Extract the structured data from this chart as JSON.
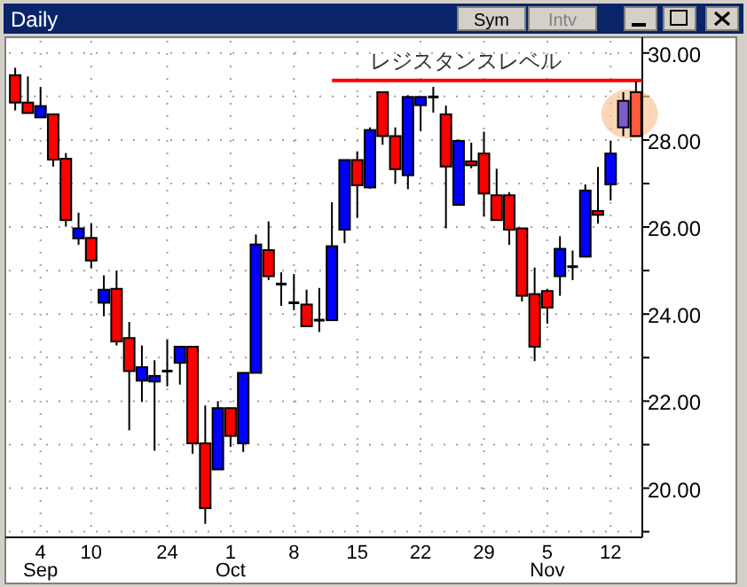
{
  "chart_data": {
    "type": "candlestick",
    "title": "Daily",
    "annotations": [
      "Sym",
      "Intv"
    ],
    "categories": [
      null,
      null,
      "4\nSep",
      null,
      null,
      null,
      "10",
      null,
      null,
      null,
      null,
      null,
      "24",
      null,
      null,
      null,
      null,
      "1\nOct",
      null,
      null,
      null,
      null,
      "8",
      null,
      null,
      null,
      null,
      "15",
      null,
      null,
      null,
      null,
      "22",
      null,
      null,
      null,
      null,
      "29",
      null,
      null,
      null,
      null,
      "5\nNov",
      null,
      null,
      null,
      null,
      "12",
      null,
      null
    ],
    "ohlc": [
      [
        29.49,
        29.66,
        28.68,
        28.86
      ],
      [
        28.86,
        29.46,
        28.62,
        28.62
      ],
      [
        28.52,
        29.22,
        28.52,
        28.78
      ],
      [
        28.59,
        28.59,
        27.39,
        27.55
      ],
      [
        27.57,
        27.7,
        26.01,
        26.16
      ],
      [
        25.74,
        26.33,
        25.59,
        25.97
      ],
      [
        25.75,
        26.09,
        25.05,
        25.23
      ],
      [
        24.26,
        24.89,
        23.95,
        24.56
      ],
      [
        24.58,
        25.0,
        23.28,
        23.37
      ],
      [
        23.45,
        23.82,
        21.33,
        22.69
      ],
      [
        22.47,
        23.28,
        21.98,
        22.78
      ],
      [
        22.45,
        22.94,
        20.86,
        22.58
      ],
      [
        22.69,
        23.41,
        22.34,
        22.69
      ],
      [
        22.88,
        23.25,
        22.38,
        23.25
      ],
      [
        23.25,
        23.25,
        20.79,
        21.03
      ],
      [
        21.03,
        21.9,
        19.18,
        19.54
      ],
      [
        20.43,
        22.0,
        20.43,
        21.84
      ],
      [
        21.84,
        21.84,
        20.95,
        21.2
      ],
      [
        21.03,
        22.65,
        20.83,
        22.65
      ],
      [
        22.65,
        25.83,
        22.65,
        25.6
      ],
      [
        25.47,
        26.13,
        24.78,
        24.87
      ],
      [
        24.69,
        24.96,
        24.19,
        24.69
      ],
      [
        24.26,
        24.92,
        24.09,
        24.26
      ],
      [
        24.22,
        24.56,
        23.72,
        23.72
      ],
      [
        23.82,
        24.6,
        23.59,
        23.86
      ],
      [
        23.86,
        26.57,
        23.86,
        25.56
      ],
      [
        25.94,
        27.54,
        25.63,
        27.54
      ],
      [
        27.54,
        27.74,
        26.21,
        26.96
      ],
      [
        26.91,
        28.29,
        26.88,
        28.23
      ],
      [
        29.1,
        29.1,
        27.89,
        28.09
      ],
      [
        28.09,
        28.29,
        27.0,
        27.33
      ],
      [
        27.19,
        29.03,
        26.87,
        28.99
      ],
      [
        28.8,
        28.99,
        28.2,
        28.99
      ],
      [
        28.99,
        29.22,
        28.63,
        28.99
      ],
      [
        28.59,
        28.79,
        25.97,
        27.39
      ],
      [
        26.51,
        28.01,
        26.51,
        27.98
      ],
      [
        27.51,
        27.94,
        27.35,
        27.42
      ],
      [
        27.69,
        28.19,
        26.24,
        26.77
      ],
      [
        26.73,
        27.34,
        26.16,
        26.16
      ],
      [
        26.73,
        26.8,
        25.59,
        25.94
      ],
      [
        25.97,
        25.97,
        24.29,
        24.42
      ],
      [
        24.46,
        25.07,
        22.92,
        23.25
      ],
      [
        24.53,
        24.58,
        23.78,
        24.15
      ],
      [
        24.87,
        25.79,
        24.42,
        25.5
      ],
      [
        25.09,
        25.46,
        24.78,
        25.09
      ],
      [
        25.32,
        26.98,
        25.32,
        26.84
      ],
      [
        26.37,
        27.38,
        26.08,
        26.28
      ],
      [
        26.98,
        27.98,
        26.61,
        27.69
      ],
      [
        28.29,
        29.1,
        28.09,
        28.9
      ],
      [
        29.1,
        29.35,
        28.09,
        28.09
      ]
    ],
    "colors": [
      "#ff0000",
      "#ff0000",
      "#0000ff",
      "#ff0000",
      "#ff0000",
      "#0000ff",
      "#ff0000",
      "#0000ff",
      "#ff0000",
      "#ff0000",
      "#0000ff",
      "#0000ff",
      "#000000",
      "#0000ff",
      "#ff0000",
      "#ff0000",
      "#0000ff",
      "#ff0000",
      "#0000ff",
      "#0000ff",
      "#ff0000",
      "#000000",
      "#000000",
      "#ff0000",
      "#000000",
      "#0000ff",
      "#0000ff",
      "#ff0000",
      "#0000ff",
      "#ff0000",
      "#ff0000",
      "#0000ff",
      "#0000ff",
      "#000000",
      "#ff0000",
      "#0000ff",
      "#ff0000",
      "#ff0000",
      "#ff0000",
      "#ff0000",
      "#ff0000",
      "#ff0000",
      "#ff0000",
      "#0000ff",
      "#000000",
      "#0000ff",
      "#ff0000",
      "#0000ff",
      "#7b5cc8",
      "#ff5a3c"
    ],
    "ylim": [
      18.87,
      30.28
    ],
    "yticks": [
      {
        "value": 19,
        "label": null
      },
      {
        "value": 20,
        "label": "20.00"
      },
      {
        "value": 21,
        "label": null
      },
      {
        "value": 22,
        "label": "22.00"
      },
      {
        "value": 23,
        "label": null
      },
      {
        "value": 24,
        "label": "24.00"
      },
      {
        "value": 25,
        "label": null
      },
      {
        "value": 26,
        "label": "26.00"
      },
      {
        "value": 27,
        "label": null
      },
      {
        "value": 28,
        "label": "28.00"
      },
      {
        "value": 29,
        "label": null
      },
      {
        "value": 30,
        "label": "30.00"
      }
    ],
    "grid": true,
    "ref_lines": [
      {
        "axis": "y",
        "value": 29.37,
        "label": "レジスタンスレベル",
        "color": "#ff0000"
      }
    ]
  }
}
